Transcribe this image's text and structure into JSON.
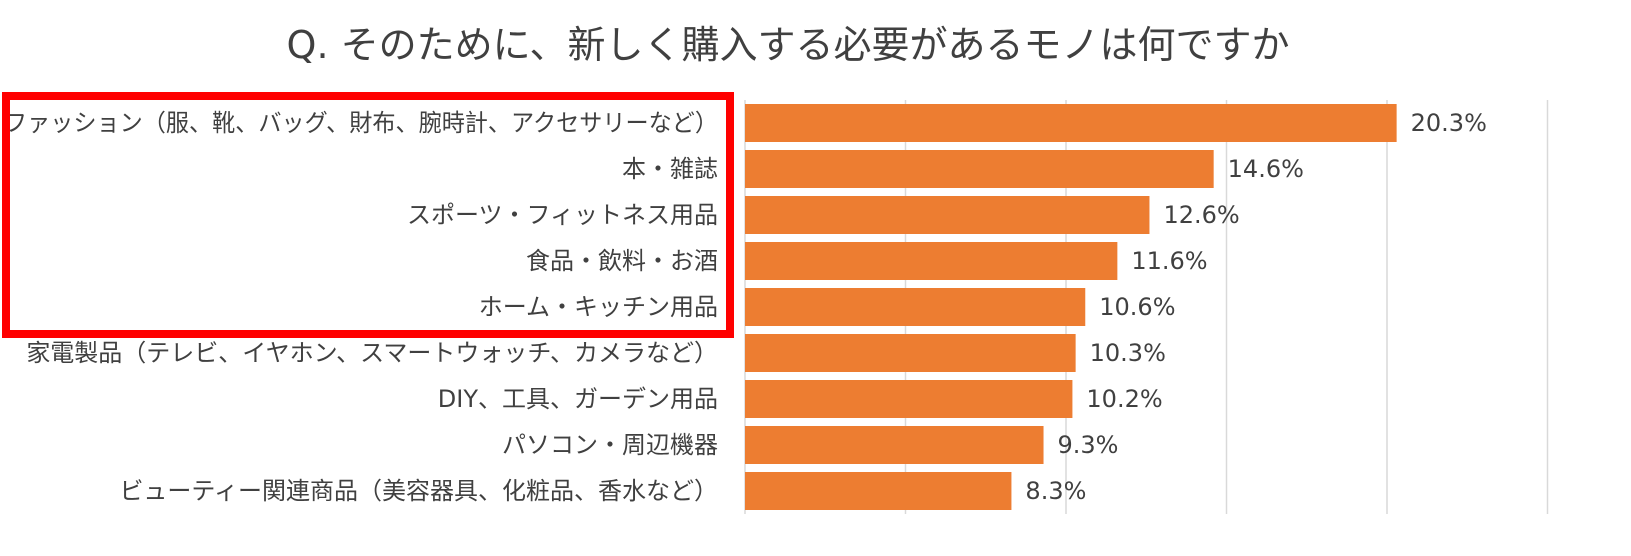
{
  "chart_data": {
    "type": "bar",
    "orientation": "horizontal",
    "title": "Q.  そのために、新しく購入する必要があるモノは何ですか",
    "xlabel": "",
    "ylabel": "",
    "xlim": [
      0,
      25
    ],
    "gridline_step": 5,
    "grid": true,
    "legend": "none",
    "value_suffix": "%",
    "categories": [
      "ファッション（服、靴、バッグ、財布、腕時計、アクセサリーなど）",
      "本・雑誌",
      "スポーツ・フィットネス用品",
      "食品・飲料・お酒",
      "ホーム・キッチン用品",
      "家電製品（テレビ、イヤホン、スマートウォッチ、カメラなど）",
      "DIY、工具、ガーデン用品",
      "パソコン・周辺機器",
      "ビューティー関連商品（美容器具、化粧品、香水など）"
    ],
    "values": [
      20.3,
      14.6,
      12.6,
      11.6,
      10.6,
      10.3,
      10.2,
      9.3,
      8.3
    ],
    "highlight": {
      "color": "#ff0000",
      "first_index": 0,
      "last_index": 4
    },
    "bar_color": "#ed7d31"
  }
}
